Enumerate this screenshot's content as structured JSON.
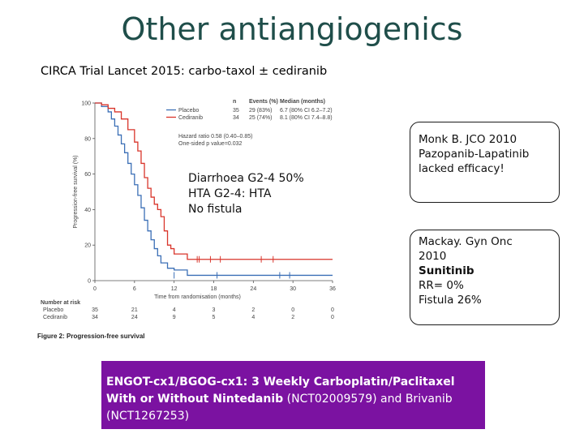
{
  "slide": {
    "title": "Other antiangiogenics",
    "subtitle": "CIRCA Trial Lancet 2015: carbo-taxol ± cediranib"
  },
  "overlay": {
    "line1": "Diarrhoea G2-4 50%",
    "line2": "HTA G2-4: HTA",
    "line3": "No fistula"
  },
  "box1": {
    "line1": "Monk B. JCO 2010",
    "line2": "Pazopanib-Lapatinib",
    "line3": "lacked efficacy!"
  },
  "box2": {
    "line1": "Mackay. Gyn Onc",
    "line2": "2010",
    "line3": "Sunitinib",
    "line4": "RR= 0%",
    "line5": "Fistula 26%"
  },
  "banner": {
    "bold_text": "ENGOT-cx1/BGOG-cx1: 3 Weekly Carboplatin/Paclitaxel With or Without Nintedanib",
    "rest_text": " (NCT02009579) and Brivanib (NCT1267253)"
  },
  "figure": {
    "caption": "Figure 2: Progression-free survival",
    "table_headers": [
      "n",
      "Events (%)",
      "Median (months)"
    ],
    "placebo_row": [
      "35",
      "29 (83%)",
      "6.7 (80% CI 6.2–7.2)"
    ],
    "cediranib_row": [
      "34",
      "25 (74%)",
      "8.1 (80% CI 7.4–8.8)"
    ],
    "hazard_text": "Hazard ratio 0.58 (0.40–0.85)",
    "pvalue_text": "One-sided p value=0.032",
    "number_at_risk_label": "Number at risk",
    "risk_placebo": [
      "35",
      "21",
      "4",
      "3",
      "2",
      "0",
      "0"
    ],
    "risk_cediranib": [
      "34",
      "24",
      "9",
      "5",
      "4",
      "2",
      "0"
    ]
  },
  "chart_data": {
    "type": "line",
    "title": "",
    "xlabel": "Time from randomisation (months)",
    "ylabel": "Progression-free survival (%)",
    "xlim": [
      0,
      36
    ],
    "ylim": [
      0,
      100
    ],
    "x_ticks": [
      0,
      6,
      12,
      18,
      24,
      30,
      36
    ],
    "y_ticks": [
      0,
      20,
      40,
      60,
      80,
      100
    ],
    "colors": {
      "placebo": "#3b6fb6",
      "cediranib": "#d9352b"
    },
    "series": [
      {
        "name": "Placebo",
        "x": [
          0,
          1,
          2,
          2.5,
          3,
          3.5,
          4,
          4.5,
          5,
          5.5,
          6,
          6.5,
          7,
          7.5,
          8,
          8.5,
          9,
          9.5,
          10,
          11,
          12,
          13,
          14,
          15,
          16,
          36
        ],
        "y": [
          100,
          98,
          95,
          91,
          87,
          82,
          77,
          72,
          66,
          60,
          54,
          48,
          41,
          34,
          28,
          23,
          18,
          14,
          10,
          7,
          6,
          6,
          3,
          3,
          3,
          3
        ]
      },
      {
        "name": "Cediranib",
        "x": [
          0,
          1,
          2,
          3,
          4,
          5,
          6,
          6.5,
          7,
          7.5,
          8,
          8.5,
          9,
          9.5,
          10,
          10.5,
          11,
          11.5,
          12,
          13,
          14,
          15,
          24,
          36
        ],
        "y": [
          100,
          99,
          97,
          95,
          91,
          85,
          78,
          73,
          66,
          58,
          52,
          47,
          43,
          40,
          36,
          28,
          20,
          18,
          15,
          15,
          12,
          12,
          12,
          12
        ]
      }
    ]
  }
}
